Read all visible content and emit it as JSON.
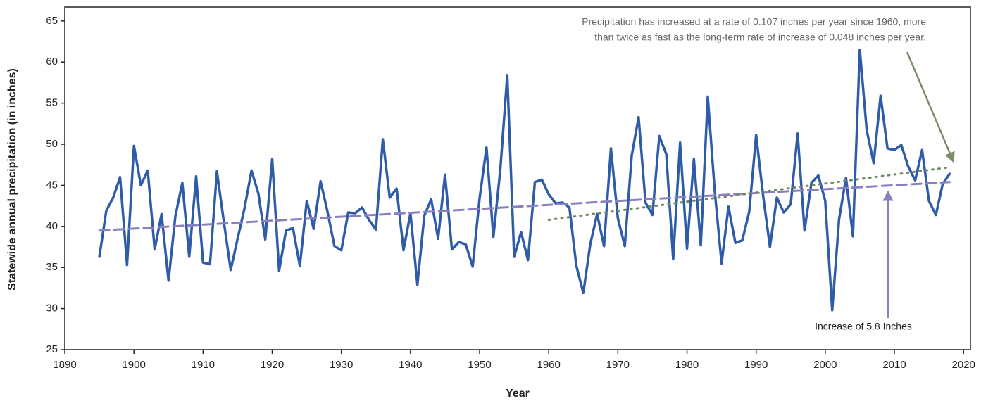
{
  "chart_data": {
    "type": "line",
    "xlabel": "Year",
    "ylabel": "Statewide annual precipitation (in inches)",
    "annotation": [
      "Precipitation has increased at a rate of 0.107 inches per year since 1960, more",
      "than twice as fast as the long-term rate of increase of 0.048 inches per year."
    ],
    "annotation2": "Increase of 5.8 Inches",
    "xlim": [
      1890,
      2021
    ],
    "xticks": [
      1890,
      1900,
      1910,
      1920,
      1930,
      1940,
      1950,
      1960,
      1970,
      1980,
      1990,
      2000,
      2010,
      2020
    ],
    "ylim": [
      25,
      66.7
    ],
    "yticks": [
      25,
      30,
      35,
      40,
      45,
      50,
      55,
      60,
      65
    ],
    "series": [
      {
        "color": "#2f5ca8",
        "style": "solid",
        "x": [
          1895,
          1896,
          1897,
          1898,
          1899,
          1900,
          1901,
          1902,
          1903,
          1904,
          1905,
          1906,
          1907,
          1908,
          1909,
          1910,
          1911,
          1912,
          1913,
          1914,
          1915,
          1916,
          1917,
          1918,
          1919,
          1920,
          1921,
          1922,
          1923,
          1924,
          1925,
          1926,
          1927,
          1928,
          1929,
          1930,
          1931,
          1932,
          1933,
          1934,
          1935,
          1936,
          1937,
          1938,
          1939,
          1940,
          1941,
          1942,
          1943,
          1944,
          1945,
          1946,
          1947,
          1948,
          1949,
          1950,
          1951,
          1952,
          1953,
          1954,
          1955,
          1956,
          1957,
          1958,
          1959,
          1960,
          1961,
          1962,
          1963,
          1964,
          1965,
          1966,
          1967,
          1968,
          1969,
          1970,
          1971,
          1972,
          1973,
          1974,
          1975,
          1976,
          1977,
          1978,
          1979,
          1980,
          1981,
          1982,
          1983,
          1984,
          1985,
          1986,
          1987,
          1988,
          1989,
          1990,
          1991,
          1992,
          1993,
          1994,
          1995,
          1996,
          1997,
          1998,
          1999,
          2000,
          2001,
          2002,
          2003,
          2004,
          2005,
          2006,
          2007,
          2008,
          2009,
          2010,
          2011,
          2012,
          2013,
          2014,
          2015,
          2016,
          2017,
          2018
        ],
        "values": [
          36.3,
          41.9,
          43.5,
          46.0,
          35.3,
          49.8,
          45.0,
          46.8,
          37.2,
          41.5,
          33.4,
          41.3,
          45.3,
          36.3,
          46.1,
          35.6,
          35.4,
          46.7,
          40.6,
          34.7,
          38.5,
          42.2,
          46.8,
          44.0,
          38.4,
          48.2,
          34.6,
          39.5,
          39.8,
          35.2,
          43.1,
          39.7,
          45.5,
          41.8,
          37.6,
          37.1,
          41.7,
          41.6,
          42.3,
          40.8,
          39.6,
          50.6,
          43.5,
          44.6,
          37.1,
          41.6,
          32.9,
          41.3,
          43.3,
          38.5,
          46.3,
          37.2,
          38.1,
          37.8,
          35.1,
          43.4,
          49.6,
          38.7,
          47.0,
          58.4,
          36.3,
          39.3,
          35.9,
          45.4,
          45.7,
          43.9,
          42.8,
          42.9,
          42.3,
          35.2,
          31.9,
          37.8,
          41.5,
          37.6,
          49.5,
          41.0,
          37.6,
          48.6,
          53.3,
          42.9,
          41.4,
          51.0,
          48.8,
          36.0,
          50.2,
          37.3,
          48.2,
          37.7,
          55.8,
          44.4,
          35.5,
          42.4,
          38.0,
          38.3,
          41.8,
          51.1,
          43.8,
          37.5,
          43.5,
          41.7,
          42.7,
          51.3,
          39.5,
          45.3,
          46.2,
          43.1,
          29.8,
          40.9,
          45.9,
          38.8,
          61.5,
          51.7,
          47.7,
          55.9,
          49.5,
          49.3,
          49.9,
          47.3,
          45.6,
          49.3,
          43.1,
          41.4,
          45.2,
          46.4
        ]
      },
      {
        "color": "#8a7fc0",
        "style": "dashed",
        "x": [
          1895,
          2018
        ],
        "values": [
          39.5,
          45.4
        ]
      },
      {
        "color": "#6f8a5c",
        "style": "dotted",
        "x": [
          1960,
          2018
        ],
        "values": [
          40.8,
          47.2
        ]
      }
    ]
  }
}
